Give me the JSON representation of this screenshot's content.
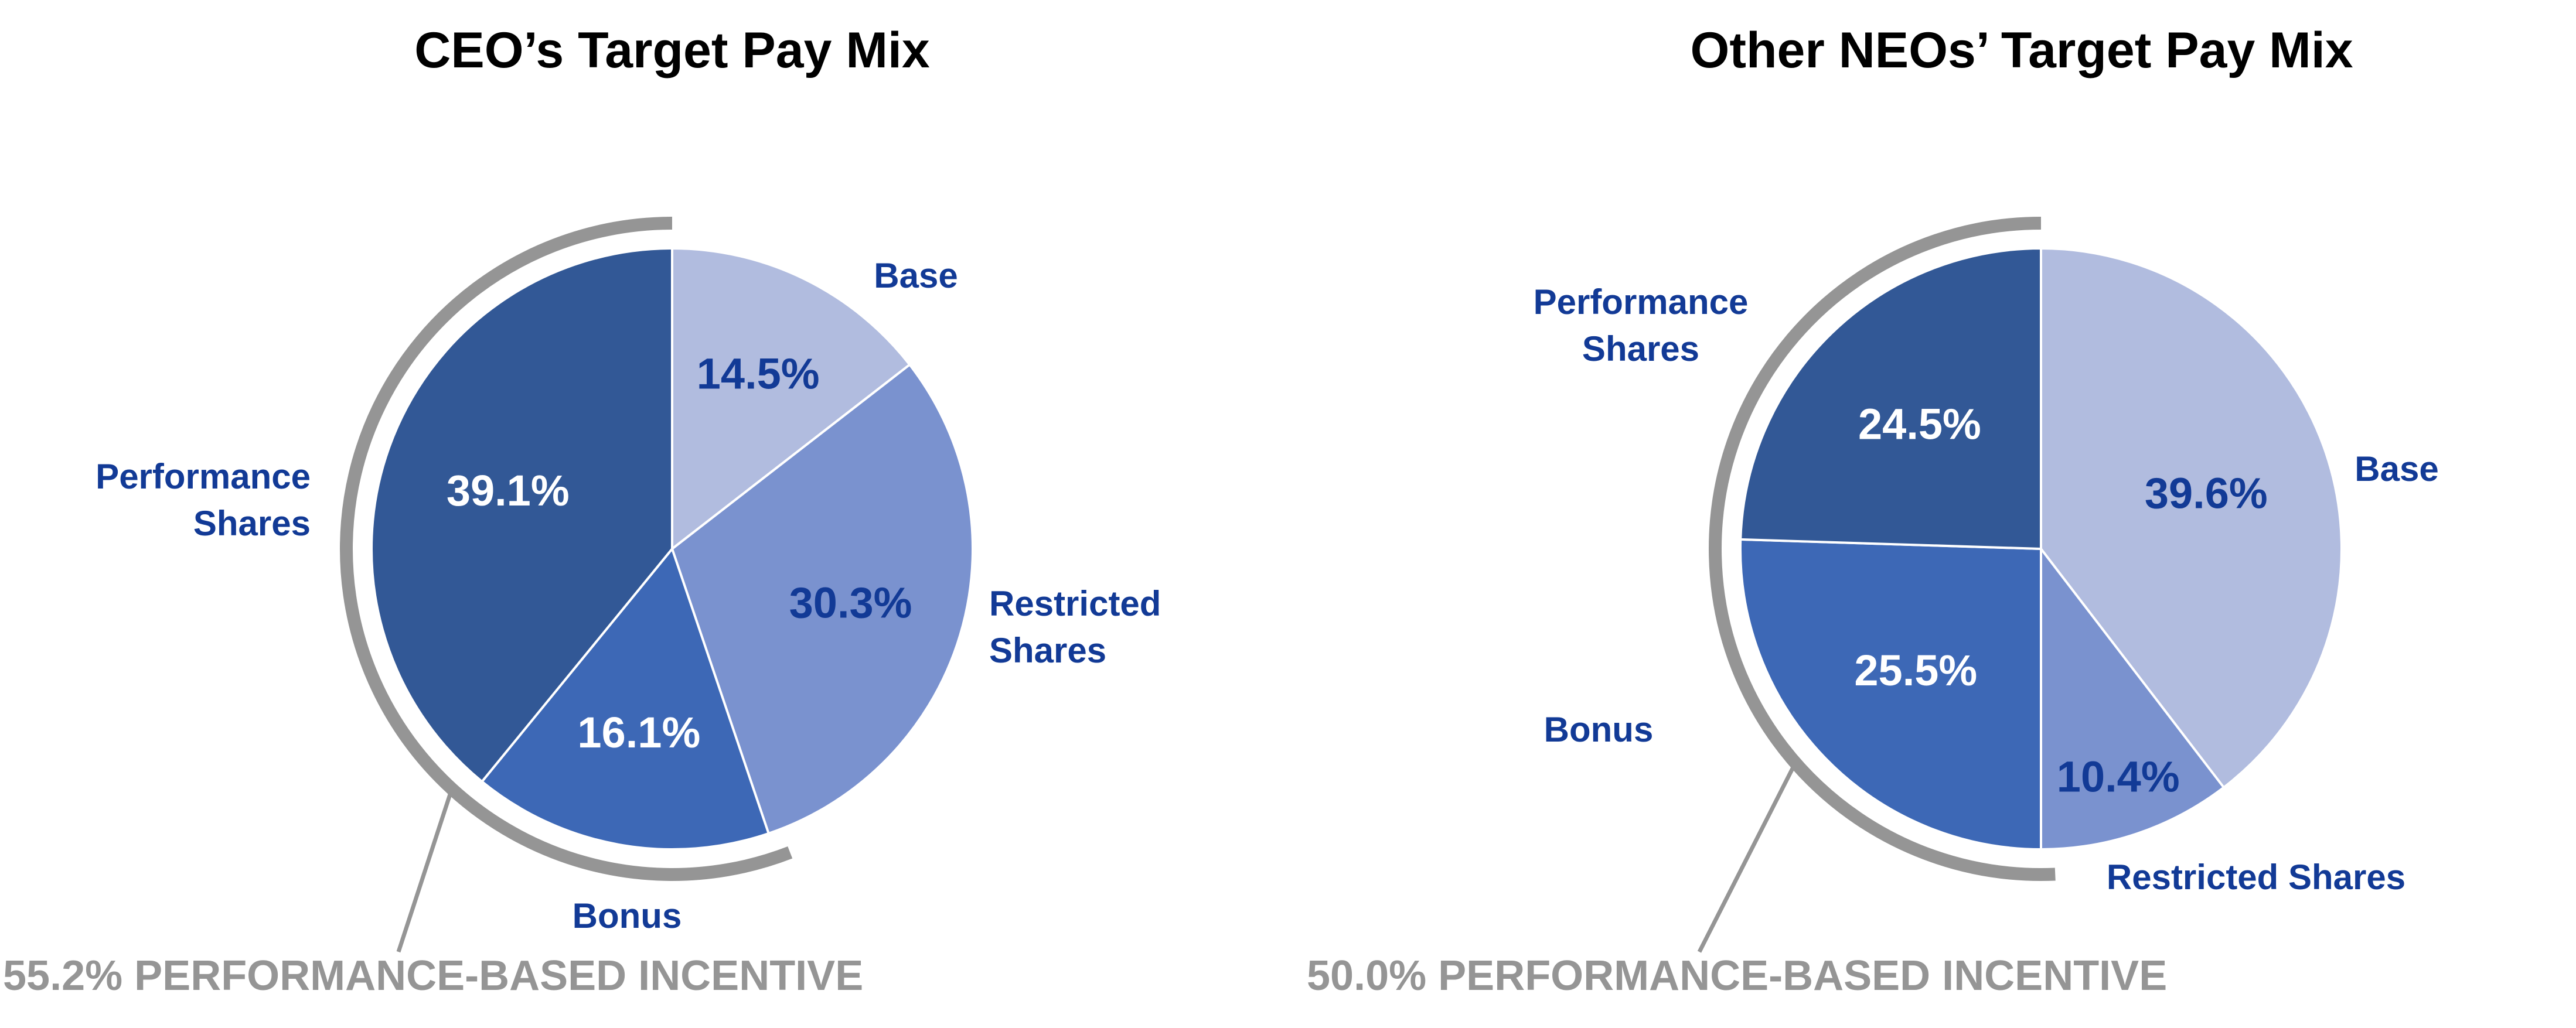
{
  "colors": {
    "title": "#000000",
    "label": "#123a96",
    "value_light_bg": "#123a96",
    "value_dark_bg": "#ffffff",
    "bracket": "#959595",
    "callout_text": "#959595",
    "slice_edge": "#ffffff"
  },
  "chart_data": [
    {
      "type": "pie",
      "title": "CEO’s Target Pay Mix",
      "slices": [
        {
          "label": "Base",
          "value": 14.5,
          "value_label": "14.5%",
          "color": "#b1bcdf"
        },
        {
          "label": "Restricted Shares",
          "value": 30.3,
          "value_label": "30.3%",
          "color": "#7a92cf"
        },
        {
          "label": "Bonus",
          "value": 16.1,
          "value_label": "16.1%",
          "color": "#3d68b6"
        },
        {
          "label": "Performance Shares",
          "value": 39.1,
          "value_label": "39.1%",
          "color": "#325896"
        }
      ],
      "start": "12 o'clock",
      "direction": "clockwise",
      "bracket_slices": [
        "Bonus",
        "Performance Shares"
      ],
      "callout": "55.2% PERFORMANCE-BASED INCENTIVE"
    },
    {
      "type": "pie",
      "title": "Other NEOs’ Target Pay Mix",
      "slices": [
        {
          "label": "Base",
          "value": 39.6,
          "value_label": "39.6%",
          "color": "#b1bcdf"
        },
        {
          "label": "Restricted Shares",
          "value": 10.4,
          "value_label": "10.4%",
          "color": "#7a92cf"
        },
        {
          "label": "Bonus",
          "value": 25.5,
          "value_label": "25.5%",
          "color": "#3d68b6"
        },
        {
          "label": "Performance Shares",
          "value": 24.5,
          "value_label": "24.5%",
          "color": "#325896"
        }
      ],
      "start": "12 o'clock",
      "direction": "clockwise",
      "bracket_slices": [
        "Bonus",
        "Performance Shares"
      ],
      "callout": "50.0% PERFORMANCE-BASED INCENTIVE"
    }
  ]
}
